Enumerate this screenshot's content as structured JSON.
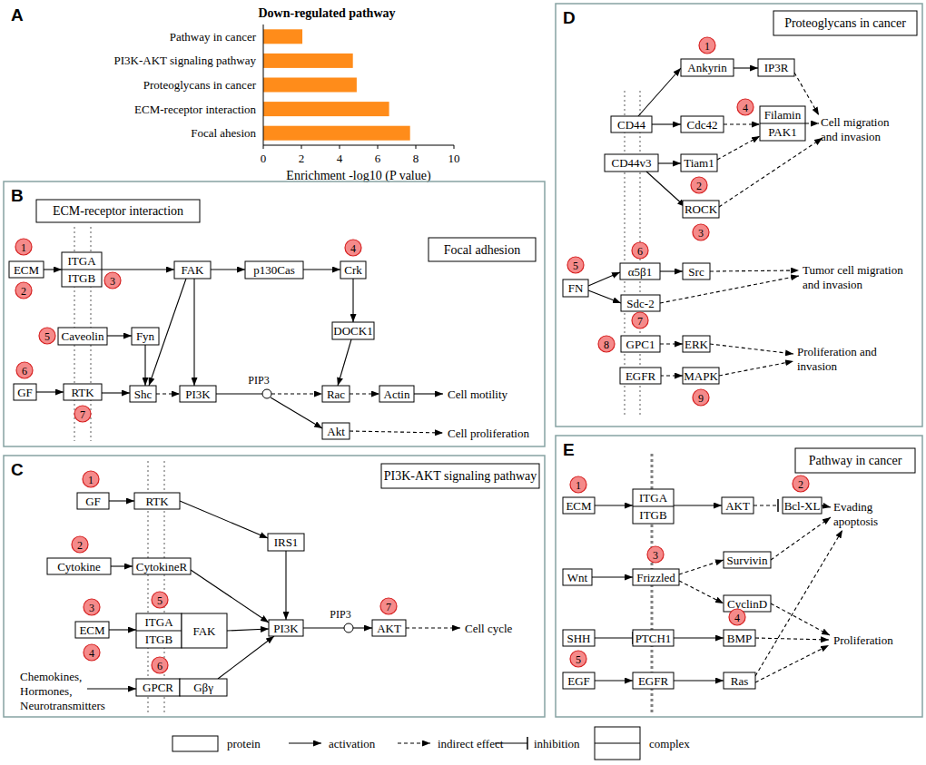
{
  "chart_panel_letter": "A",
  "chart_data": {
    "type": "bar",
    "orientation": "horizontal",
    "title": "Down-regulated pathway",
    "x_label": "Enrichment -log10 (P value)",
    "categories": [
      "Pathway in cancer",
      "PI3K-AKT signaling pathway",
      "Proteoglycans in cancer",
      "ECM-receptor interaction",
      "Focal ahesion"
    ],
    "values": [
      2.05,
      4.7,
      4.9,
      6.6,
      7.7
    ],
    "color": "#ff8c1a",
    "xlim": [
      0,
      10
    ],
    "xticks": [
      0,
      2,
      4,
      6,
      8,
      10
    ]
  },
  "diagrams": [
    {
      "letter": "B",
      "titles": [
        "ECM-receptor interaction",
        "Focal adhesion"
      ],
      "nodes": [
        {
          "label": "ECM",
          "badges": [
            1,
            2
          ]
        },
        {
          "label": [
            "ITGA",
            "ITGB"
          ],
          "badges": [
            3
          ]
        },
        {
          "label": "FAK"
        },
        {
          "label": "p130Cas"
        },
        {
          "label": "Crk",
          "badges": [
            4
          ]
        },
        {
          "label": "Caveolin",
          "badges": [
            5
          ]
        },
        {
          "label": "Fyn"
        },
        {
          "label": "GF",
          "badges": [
            6
          ]
        },
        {
          "label": "RTK",
          "badges": [
            7
          ]
        },
        {
          "label": "Shc"
        },
        {
          "label": "PI3K"
        },
        {
          "label": "PIP3"
        },
        {
          "label": "DOCK1"
        },
        {
          "label": "Rac"
        },
        {
          "label": "Actin"
        },
        {
          "label": "Akt"
        }
      ],
      "texts": [
        [
          "Cell motility"
        ],
        [
          "Cell proliferation"
        ]
      ]
    },
    {
      "letter": "C",
      "titles": [
        "PI3K-AKT signaling pathway"
      ],
      "nodes": [
        {
          "label": "GF",
          "badges": [
            1
          ]
        },
        {
          "label": "RTK"
        },
        {
          "label": "IRS1"
        },
        {
          "label": "Cytokine",
          "badges": [
            2
          ]
        },
        {
          "label": "CytokineR"
        },
        {
          "label": "PI3K"
        },
        {
          "label": "PIP3"
        },
        {
          "label": "AKT",
          "badges": [
            7
          ]
        },
        {
          "label": "ECM",
          "badges": [
            3,
            4
          ]
        },
        {
          "label": [
            "ITGA",
            "ITGB"
          ],
          "badges": [
            5
          ]
        },
        {
          "label": "FAK"
        },
        {
          "label": "GPCR",
          "badges": [
            6
          ]
        },
        {
          "label": "Gβγ"
        }
      ],
      "texts": [
        [
          "Cell cycle"
        ],
        [
          "Chemokines,",
          "Hormones,",
          "Neurotransmitters"
        ]
      ]
    },
    {
      "letter": "D",
      "titles": [
        "Proteoglycans in cancer"
      ],
      "nodes": [
        {
          "label": "CD44"
        },
        {
          "label": "CD44v3"
        },
        {
          "label": "Ankyrin",
          "badges": [
            1
          ]
        },
        {
          "label": "IP3R"
        },
        {
          "label": "Cdc42"
        },
        {
          "label": [
            "Filamin",
            "PAK1"
          ],
          "badges": [
            4
          ]
        },
        {
          "label": "Tiam1",
          "badges": [
            2
          ]
        },
        {
          "label": "ROCK",
          "badges": [
            3
          ]
        },
        {
          "label": "FN",
          "badges": [
            5
          ]
        },
        {
          "label": "α5β1",
          "badges": [
            6
          ]
        },
        {
          "label": "Src"
        },
        {
          "label": "Sdc-2",
          "badges": [
            7
          ]
        },
        {
          "label": "GPC1",
          "badges": [
            8
          ]
        },
        {
          "label": "ERK"
        },
        {
          "label": "EGFR"
        },
        {
          "label": "MAPK",
          "badges": [
            9
          ]
        }
      ],
      "texts": [
        [
          "Cell migration",
          "and invasion"
        ],
        [
          "Tumor cell migration",
          "and invasion"
        ],
        [
          "Proliferation and",
          "invasion"
        ]
      ]
    },
    {
      "letter": "E",
      "titles": [
        "Pathway in cancer"
      ],
      "nodes": [
        {
          "label": "ECM",
          "badges": [
            1
          ]
        },
        {
          "label": [
            "ITGA",
            "ITGB"
          ]
        },
        {
          "label": "AKT"
        },
        {
          "label": "Bcl-XL",
          "badges": [
            2
          ]
        },
        {
          "label": "Wnt"
        },
        {
          "label": "Frizzled",
          "badges": [
            3
          ]
        },
        {
          "label": "Survivin"
        },
        {
          "label": "CyclinD"
        },
        {
          "label": "SHH"
        },
        {
          "label": "PTCH1"
        },
        {
          "label": "BMP",
          "badges": [
            4
          ]
        },
        {
          "label": "EGF",
          "badges": [
            5
          ]
        },
        {
          "label": "EGFR"
        },
        {
          "label": "Ras"
        }
      ],
      "texts": [
        [
          "Evading",
          "apoptosis"
        ],
        [
          "Proliferation"
        ]
      ]
    }
  ],
  "key": [
    "protein",
    "activation",
    "indirect effect",
    "inhibition",
    "complex"
  ]
}
